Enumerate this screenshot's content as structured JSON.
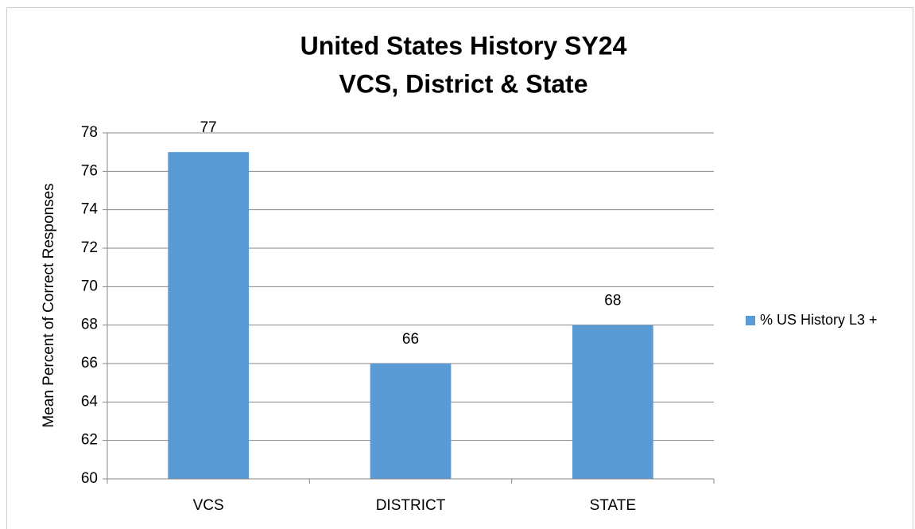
{
  "chart_data": {
    "type": "bar",
    "title": [
      "United States History SY24",
      "VCS, District & State"
    ],
    "y_label": "Mean Percent of Correct Responses",
    "categories": [
      "VCS",
      "DISTRICT",
      "STATE"
    ],
    "series": [
      {
        "name": "% US History L3 +",
        "color": "#5b9bd5",
        "values": [
          77,
          66,
          68
        ]
      }
    ],
    "ylim": [
      60,
      78
    ],
    "yticks": [
      60,
      62,
      64,
      66,
      68,
      70,
      72,
      74,
      76,
      78
    ],
    "grid": true,
    "legend": "right"
  }
}
